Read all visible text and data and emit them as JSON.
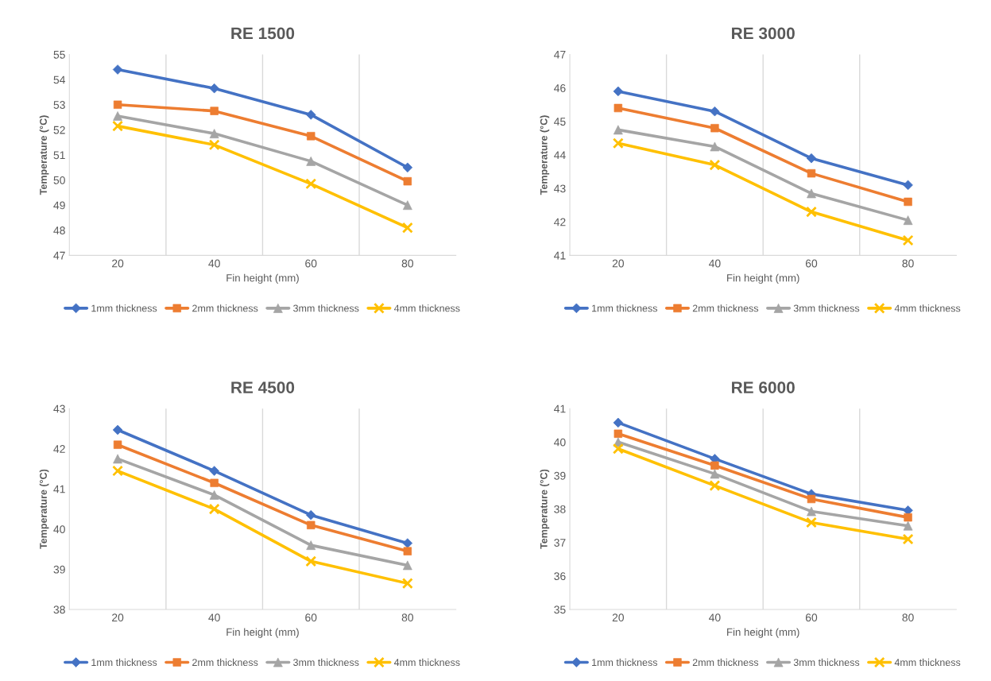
{
  "chart_data": [
    {
      "type": "line",
      "title": "RE 1500",
      "xlabel": "Fin height (mm)",
      "ylabel": "Temperature (°C)",
      "categories": [
        "20",
        "40",
        "60",
        "80"
      ],
      "ylim": [
        47,
        55
      ],
      "yticks": [
        47,
        48,
        49,
        50,
        51,
        52,
        53,
        54,
        55
      ],
      "grid": "x",
      "legend": "bottom",
      "series": [
        {
          "name": "1mm thickness",
          "color": "#4472c4",
          "marker": "diamond",
          "values": [
            54.4,
            53.65,
            52.6,
            50.5
          ]
        },
        {
          "name": "2mm thickness",
          "color": "#ed7d31",
          "marker": "square",
          "values": [
            53.0,
            52.75,
            51.75,
            49.95
          ]
        },
        {
          "name": "3mm thickness",
          "color": "#a5a5a5",
          "marker": "triangle",
          "values": [
            52.55,
            51.85,
            50.75,
            49.0
          ]
        },
        {
          "name": "4mm thickness",
          "color": "#ffc000",
          "marker": "cross",
          "values": [
            52.15,
            51.4,
            49.85,
            48.1
          ]
        }
      ]
    },
    {
      "type": "line",
      "title": "RE 3000",
      "xlabel": "Fin height (mm)",
      "ylabel": "Temperature (°C)",
      "categories": [
        "20",
        "40",
        "60",
        "80"
      ],
      "ylim": [
        41,
        47
      ],
      "yticks": [
        41,
        42,
        43,
        44,
        45,
        46,
        47
      ],
      "grid": "x",
      "legend": "bottom",
      "series": [
        {
          "name": "1mm thickness",
          "color": "#4472c4",
          "marker": "diamond",
          "values": [
            45.9,
            45.3,
            43.9,
            43.1
          ]
        },
        {
          "name": "2mm thickness",
          "color": "#ed7d31",
          "marker": "square",
          "values": [
            45.4,
            44.8,
            43.45,
            42.6
          ]
        },
        {
          "name": "3mm thickness",
          "color": "#a5a5a5",
          "marker": "triangle",
          "values": [
            44.75,
            44.25,
            42.85,
            42.05
          ]
        },
        {
          "name": "4mm thickness",
          "color": "#ffc000",
          "marker": "cross",
          "values": [
            44.35,
            43.7,
            42.3,
            41.45
          ]
        }
      ]
    },
    {
      "type": "line",
      "title": "RE 4500",
      "xlabel": "Fin height (mm)",
      "ylabel": "Temperature (°C)",
      "categories": [
        "20",
        "40",
        "60",
        "80"
      ],
      "ylim": [
        38,
        43
      ],
      "yticks": [
        38,
        39,
        40,
        41,
        42,
        43
      ],
      "grid": "x",
      "legend": "bottom",
      "series": [
        {
          "name": "1mm thickness",
          "color": "#4472c4",
          "marker": "diamond",
          "values": [
            42.47,
            41.45,
            40.35,
            39.65
          ]
        },
        {
          "name": "2mm thickness",
          "color": "#ed7d31",
          "marker": "square",
          "values": [
            42.1,
            41.15,
            40.1,
            39.45
          ]
        },
        {
          "name": "3mm thickness",
          "color": "#a5a5a5",
          "marker": "triangle",
          "values": [
            41.75,
            40.85,
            39.6,
            39.1
          ]
        },
        {
          "name": "4mm thickness",
          "color": "#ffc000",
          "marker": "cross",
          "values": [
            41.45,
            40.5,
            39.2,
            38.65
          ]
        }
      ]
    },
    {
      "type": "line",
      "title": "RE 6000",
      "xlabel": "Fin height (mm)",
      "ylabel": "Temperature (°C)",
      "categories": [
        "20",
        "40",
        "60",
        "80"
      ],
      "ylim": [
        35,
        41
      ],
      "yticks": [
        35,
        36,
        37,
        38,
        39,
        40,
        41
      ],
      "grid": "x",
      "legend": "bottom",
      "series": [
        {
          "name": "1mm thickness",
          "color": "#4472c4",
          "marker": "diamond",
          "values": [
            40.58,
            39.5,
            38.45,
            37.96
          ]
        },
        {
          "name": "2mm thickness",
          "color": "#ed7d31",
          "marker": "square",
          "values": [
            40.25,
            39.3,
            38.3,
            37.75
          ]
        },
        {
          "name": "3mm thickness",
          "color": "#a5a5a5",
          "marker": "triangle",
          "values": [
            40.0,
            39.05,
            37.93,
            37.5
          ]
        },
        {
          "name": "4mm thickness",
          "color": "#ffc000",
          "marker": "cross",
          "values": [
            39.8,
            38.7,
            37.6,
            37.1
          ]
        }
      ]
    }
  ]
}
